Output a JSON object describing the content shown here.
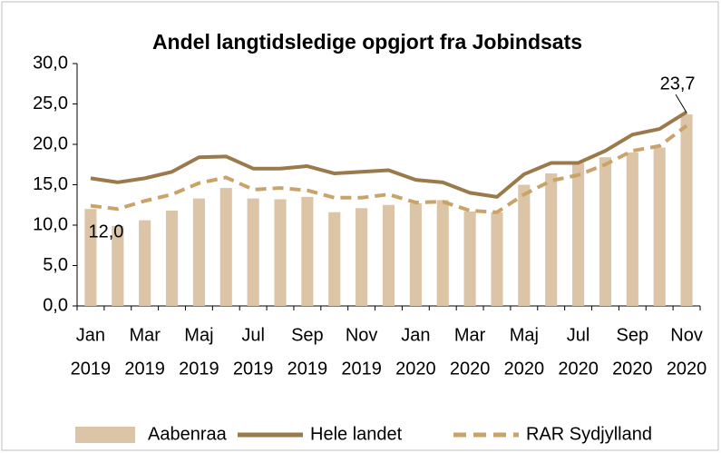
{
  "chart_data": {
    "type": "bar_line",
    "title": "Andel langtidsledige opgjort fra Jobindsats",
    "categories": [
      [
        "Jan",
        "2019"
      ],
      null,
      [
        "Mar",
        "2019"
      ],
      null,
      [
        "Maj",
        "2019"
      ],
      null,
      [
        "Jul",
        "2019"
      ],
      null,
      [
        "Sep",
        "2019"
      ],
      null,
      [
        "Nov",
        "2019"
      ],
      null,
      [
        "Jan",
        "2020"
      ],
      null,
      [
        "Mar",
        "2020"
      ],
      null,
      [
        "Maj",
        "2020"
      ],
      null,
      [
        "Jul",
        "2020"
      ],
      null,
      [
        "Sep",
        "2020"
      ],
      null,
      [
        "Nov",
        "2020"
      ]
    ],
    "series": [
      {
        "name": "Aabenraa",
        "type": "bar",
        "color": "#dcc5a6",
        "values": [
          12.0,
          9.9,
          10.6,
          11.8,
          13.3,
          14.6,
          13.3,
          13.2,
          13.5,
          11.6,
          12.1,
          12.5,
          12.7,
          13.1,
          11.7,
          11.6,
          15.0,
          16.4,
          17.7,
          18.4,
          19.0,
          19.6,
          23.7
        ],
        "value_labels": [
          "12,0",
          null,
          null,
          null,
          null,
          null,
          null,
          null,
          null,
          null,
          null,
          null,
          null,
          null,
          null,
          null,
          null,
          null,
          null,
          null,
          null,
          null,
          "23,7"
        ]
      },
      {
        "name": "Hele landet",
        "type": "line",
        "color": "#9a7a4a",
        "values": [
          15.8,
          15.3,
          15.8,
          16.6,
          18.4,
          18.5,
          17.0,
          17.0,
          17.3,
          16.4,
          16.6,
          16.8,
          15.6,
          15.3,
          14.0,
          13.5,
          16.3,
          17.7,
          17.7,
          19.2,
          21.2,
          21.9,
          24.0
        ]
      },
      {
        "name": "RAR Sydjylland",
        "type": "dashed-line",
        "color": "#c9a36a",
        "values": [
          12.4,
          12.0,
          13.0,
          13.8,
          15.2,
          15.9,
          14.4,
          14.6,
          14.3,
          13.4,
          13.4,
          13.8,
          12.8,
          12.9,
          11.8,
          11.6,
          13.8,
          15.5,
          16.2,
          17.5,
          19.2,
          19.8,
          22.3
        ]
      }
    ],
    "ylim": [
      0,
      30
    ],
    "yticks": [
      {
        "value": 0,
        "label": "0,0"
      },
      {
        "value": 5,
        "label": "5,0"
      },
      {
        "value": 10,
        "label": "10,0"
      },
      {
        "value": 15,
        "label": "15,0"
      },
      {
        "value": 20,
        "label": "20,0"
      },
      {
        "value": 25,
        "label": "25,0"
      },
      {
        "value": 30,
        "label": "30,0"
      }
    ],
    "legend": "bottom"
  }
}
